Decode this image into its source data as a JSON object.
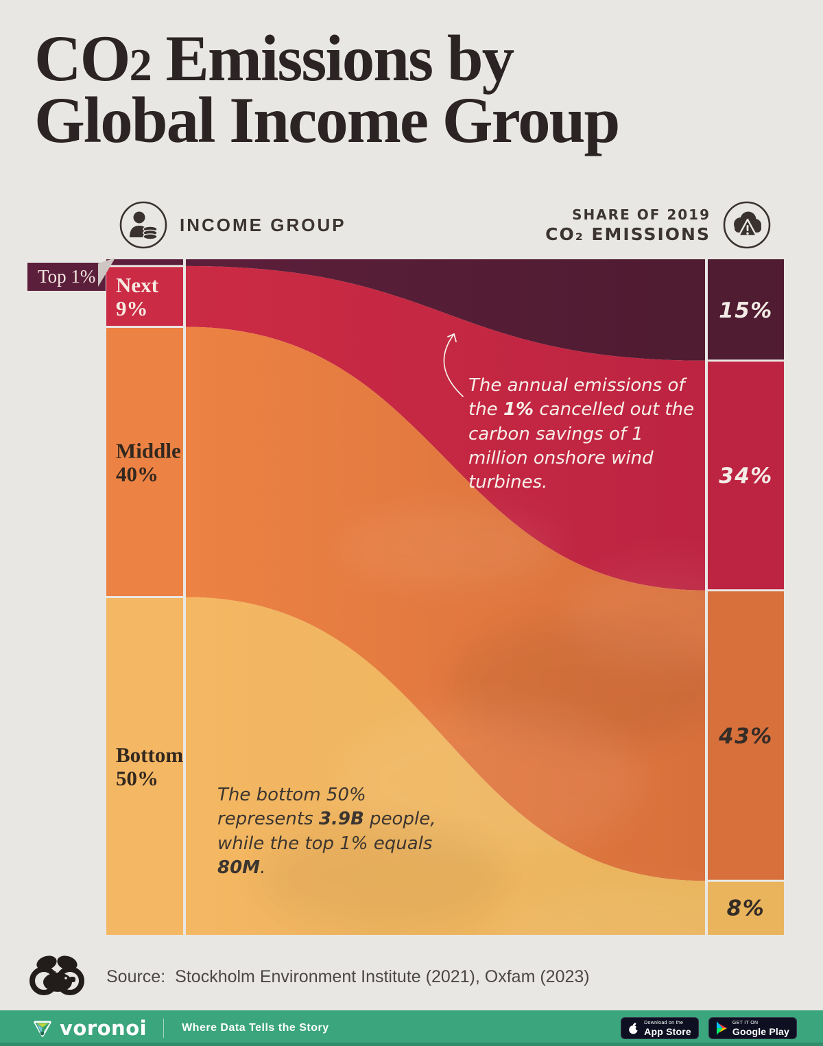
{
  "title": {
    "co": "CO",
    "subscript": "2",
    "line1_rest": " Emissions by",
    "line2": "Global Income Group"
  },
  "column_headers": {
    "left": {
      "label": "INCOME GROUP",
      "icon": "person-coins"
    },
    "right": {
      "line1": "SHARE OF 2019",
      "line2": "CO₂ EMISSIONS",
      "icon": "emissions-cloud-warning"
    }
  },
  "chart_data": {
    "type": "sankey",
    "unit": "%",
    "left_column_title": "INCOME GROUP",
    "right_column_title": "SHARE OF 2019 CO₂ EMISSIONS",
    "nodes_left": [
      {
        "label": "Top 1%",
        "value": 1,
        "color": "#5c1f3b",
        "label_color": "#f3e8e2"
      },
      {
        "label": "Next 9%",
        "value": 9,
        "color": "#cb2b44",
        "label_color": "#f6e9e1"
      },
      {
        "label": "Middle 40%",
        "value": 40,
        "color": "#ec8243",
        "label_color": "#32281f"
      },
      {
        "label": "Bottom 50%",
        "value": 50,
        "color": "#f4b763",
        "label_color": "#32281f"
      }
    ],
    "nodes_right": [
      {
        "label": "15%",
        "value": 15,
        "color": "#4f1c31",
        "label_color": "#f3ebe6"
      },
      {
        "label": "34%",
        "value": 34,
        "color": "#bd2441",
        "label_color": "#f3ebe6"
      },
      {
        "label": "43%",
        "value": 43,
        "color": "#d8703c",
        "label_color": "#342c26"
      },
      {
        "label": "8%",
        "value": 8,
        "color": "#e9b45c",
        "label_color": "#342c26"
      }
    ],
    "links": [
      {
        "source": "Top 1%",
        "target": "15%",
        "value": 15
      },
      {
        "source": "Next 9%",
        "target": "34%",
        "value": 34
      },
      {
        "source": "Middle 40%",
        "target": "43%",
        "value": 43
      },
      {
        "source": "Bottom 50%",
        "target": "8%",
        "value": 8
      }
    ]
  },
  "annotations": {
    "wind": {
      "pre": "The annual emissions of the ",
      "bold": "1%",
      "post": " cancelled out the carbon savings of 1 million onshore wind turbines."
    },
    "population": {
      "p1": "The bottom 50% represents ",
      "b1": "3.9B",
      "p2": " people, while the top 1% equals ",
      "b2": "80M",
      "p3": "."
    }
  },
  "source": {
    "label": "Source:",
    "text": "Stockholm Environment Institute (2021), Oxfam (2023)"
  },
  "footer": {
    "brand": "voronoi",
    "tagline": "Where Data Tells the Story",
    "background": "#3ba57d",
    "badges": [
      {
        "line1": "Download on the",
        "line2": "App Store",
        "icon": "apple"
      },
      {
        "line1": "GET IT ON",
        "line2": "Google Play",
        "icon": "google-play"
      }
    ]
  }
}
